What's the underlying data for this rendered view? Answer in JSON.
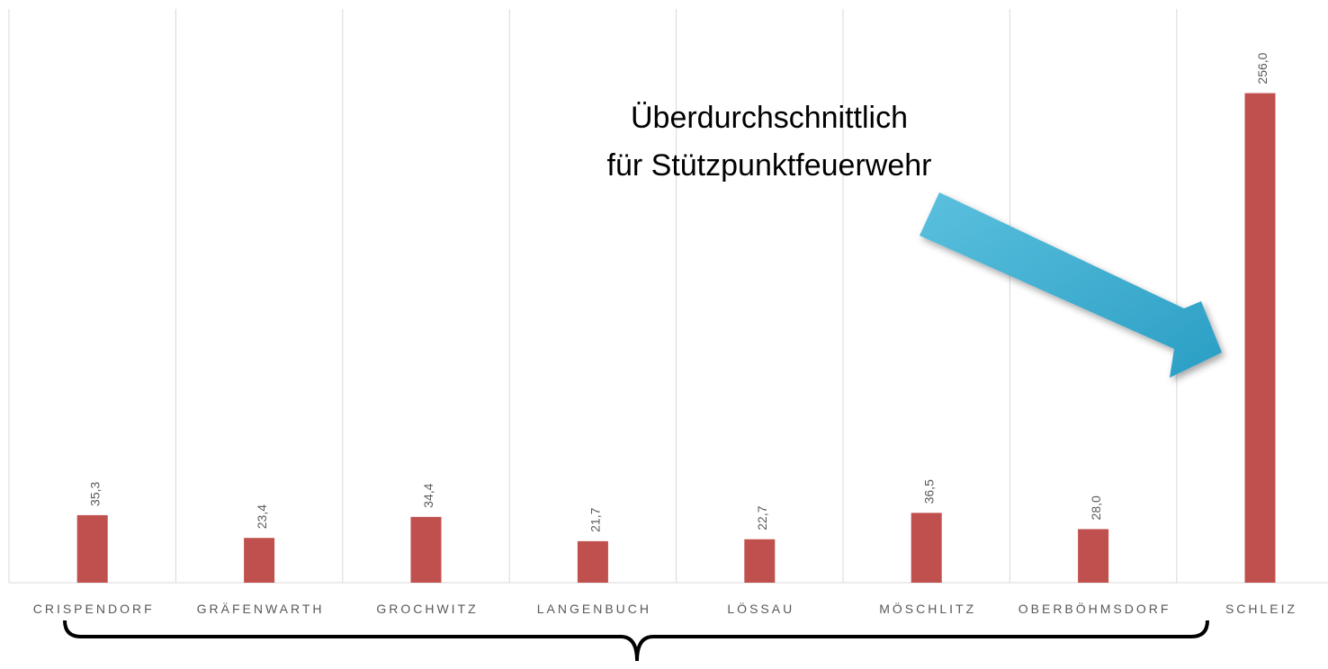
{
  "chart_data": {
    "type": "bar",
    "categories": [
      "CRISPENDORF",
      "GRÄFENWARTH",
      "GROCHWITZ",
      "LANGENBUCH",
      "LÖSSAU",
      "MÖSCHLITZ",
      "OBERBÖHMSDORF",
      "SCHLEIZ"
    ],
    "values": [
      35.3,
      23.4,
      34.4,
      21.7,
      22.7,
      36.5,
      28.0,
      256.0
    ],
    "value_labels": [
      "35,3",
      "23,4",
      "34,4",
      "21,7",
      "22,7",
      "36,5",
      "28,0",
      "256,0"
    ],
    "color": "#c0504d",
    "ylim": [
      0,
      300
    ],
    "grid": true,
    "annotations": [
      "Überdurchschnittlich",
      "für Stützpunktfeuerwehr"
    ]
  }
}
